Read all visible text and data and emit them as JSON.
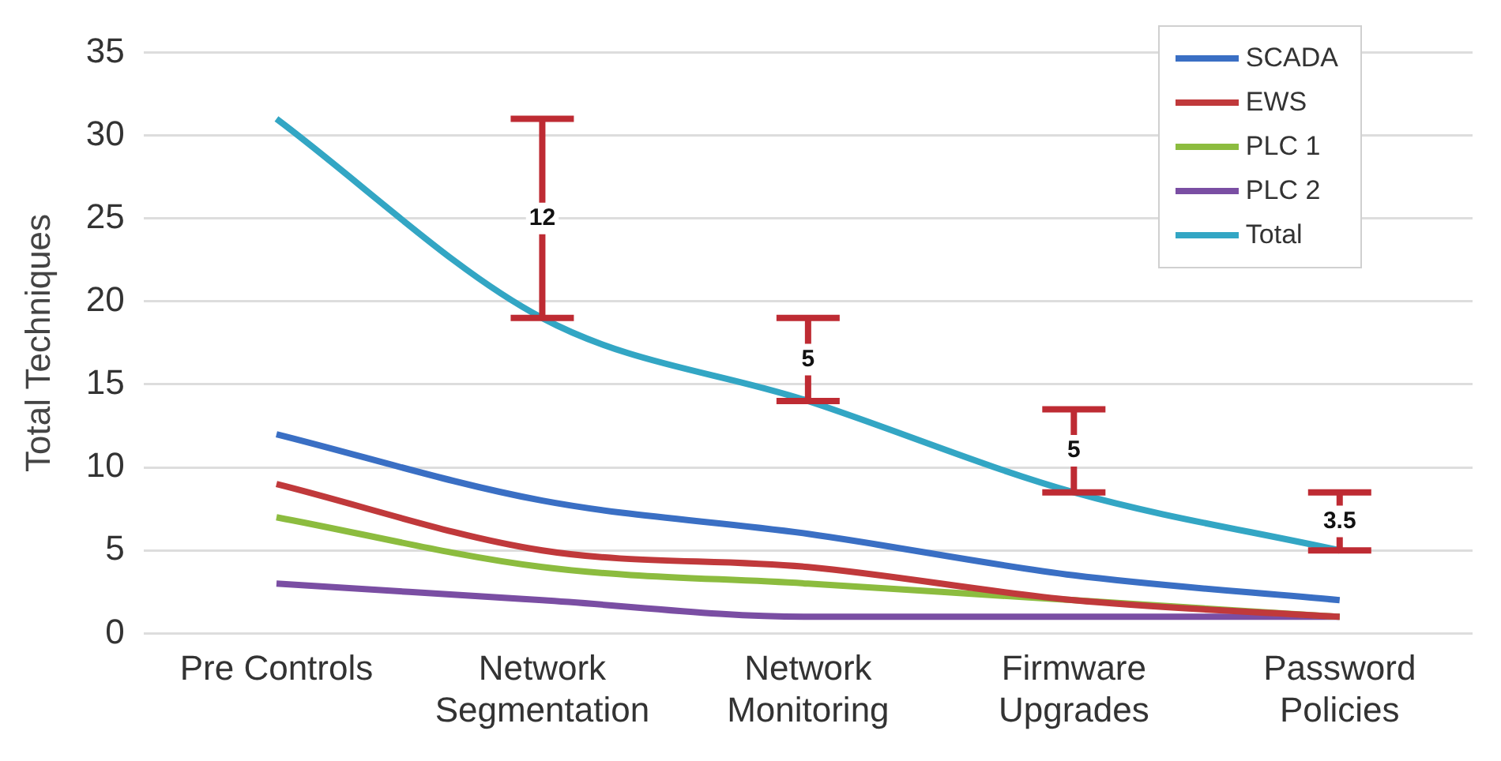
{
  "chart_data": {
    "type": "line",
    "ylabel": "Total Techniques",
    "categories": [
      "Pre Controls",
      "Network Segmentation",
      "Network Monitoring",
      "Firmware Upgrades",
      "Password Policies"
    ],
    "series": [
      {
        "name": "SCADA",
        "color": "#3a6fc4",
        "values": [
          12,
          8,
          6,
          3.5,
          2
        ]
      },
      {
        "name": "EWS",
        "color": "#c0393b",
        "values": [
          9,
          5,
          4,
          2,
          1
        ]
      },
      {
        "name": "PLC 1",
        "color": "#8cbc3f",
        "values": [
          7,
          4,
          3,
          2,
          1
        ]
      },
      {
        "name": "PLC 2",
        "color": "#7a4ea3",
        "values": [
          3,
          2,
          1,
          1,
          1
        ]
      },
      {
        "name": "Total",
        "color": "#33a6c4",
        "values": [
          31,
          19,
          14,
          8.5,
          5
        ],
        "errors": [
          null,
          [
            19,
            31
          ],
          [
            14,
            19
          ],
          [
            8.5,
            13.5
          ],
          [
            5,
            8.5
          ]
        ]
      }
    ],
    "annotations": [
      {
        "text": "12",
        "x": "Network Segmentation",
        "y": 25
      },
      {
        "text": "5",
        "x": "Network Monitoring",
        "y": 16.5
      },
      {
        "text": "5",
        "x": "Firmware Upgrades",
        "y": 11
      },
      {
        "text": "3.5",
        "x": "Password Policies",
        "y": 6.75
      }
    ],
    "ylim": [
      0,
      35
    ],
    "yticks": [
      0,
      5,
      10,
      15,
      20,
      25,
      30,
      35
    ],
    "grid": "y",
    "legend": "top right",
    "marker": "none",
    "line_style": "solid"
  }
}
